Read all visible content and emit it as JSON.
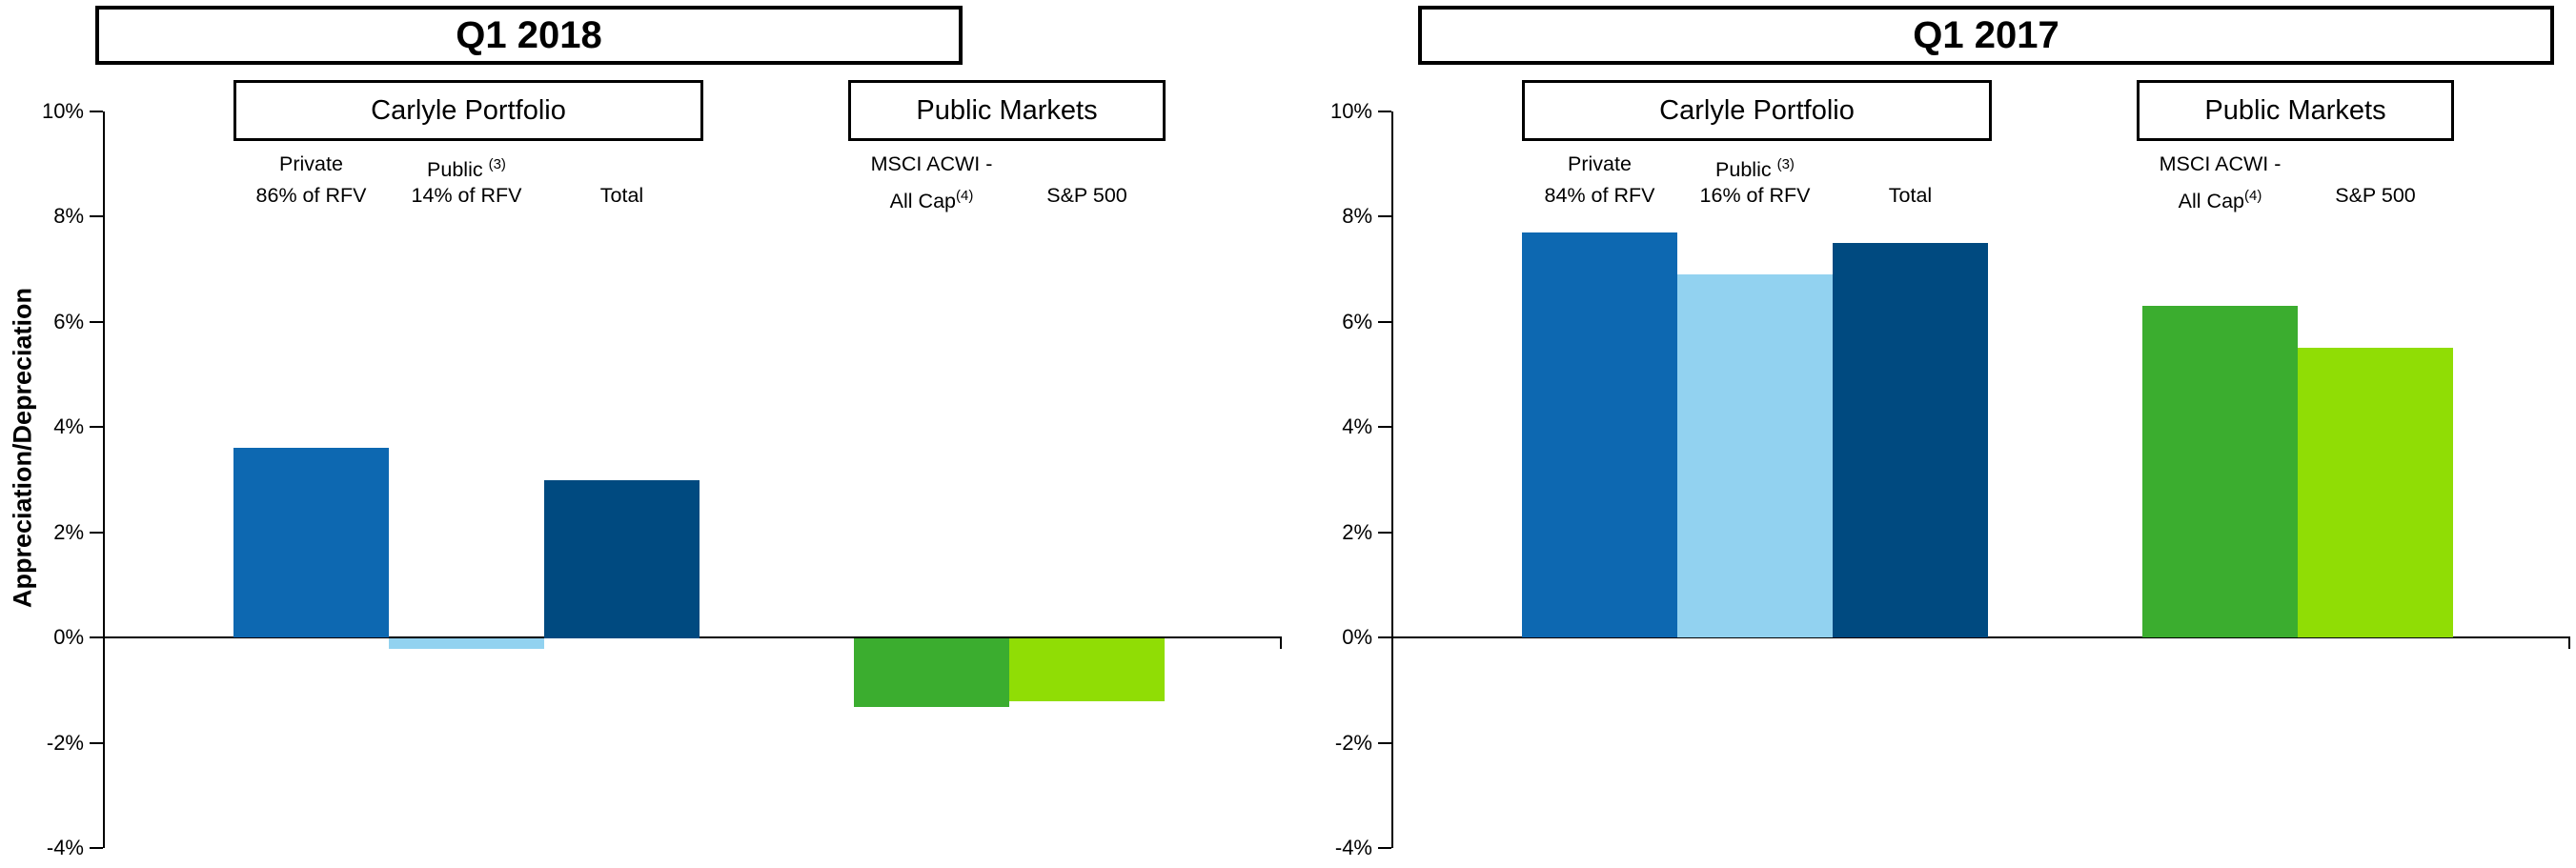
{
  "y_axis_title": "Appreciation/Depreciation",
  "chart_data": [
    {
      "type": "bar",
      "title": "Q1 2018",
      "ylabel": "Appreciation/Depreciation",
      "ylim": [
        -4,
        10
      ],
      "ytick_step": 2,
      "yticks": [
        10,
        8,
        6,
        4,
        2,
        0,
        -2,
        -4
      ],
      "ytick_labels": [
        "10%",
        "8%",
        "6%",
        "4%",
        "2%",
        "0%",
        "-2%",
        "-4%"
      ],
      "grid": false,
      "legend": "none",
      "groups": [
        {
          "header": "Carlyle Portfolio",
          "bars": [
            {
              "series": "Private",
              "label_top": "Private",
              "label_top_sup": "",
              "label_bottom": "86% of RFV",
              "label_bottom_sup": "",
              "value": 3.6,
              "color": "#0D68B1"
            },
            {
              "series": "Public",
              "label_top": "Public ",
              "label_top_sup": "(3)",
              "label_bottom": "14% of RFV",
              "label_bottom_sup": "",
              "value": -0.2,
              "color": "#92D2F0"
            },
            {
              "series": "Total",
              "label_top": "",
              "label_top_sup": "",
              "label_bottom": "Total",
              "label_bottom_sup": "",
              "value": 3.0,
              "color": "#004A80"
            }
          ]
        },
        {
          "header": "Public Markets",
          "bars": [
            {
              "series": "MSCI ACWI - All Cap",
              "label_top": "MSCI ACWI -",
              "label_top_sup": "",
              "label_bottom": "All Cap",
              "label_bottom_sup": "(4)",
              "value": -1.3,
              "color": "#3BAD2F"
            },
            {
              "series": "S&P 500",
              "label_top": "",
              "label_top_sup": "",
              "label_bottom": "S&P 500",
              "label_bottom_sup": "",
              "value": -1.2,
              "color": "#90DD05"
            }
          ]
        }
      ]
    },
    {
      "type": "bar",
      "title": "Q1 2017",
      "ylabel": "",
      "ylim": [
        -4,
        10
      ],
      "ytick_step": 2,
      "yticks": [
        10,
        8,
        6,
        4,
        2,
        0,
        -2,
        -4
      ],
      "ytick_labels": [
        "10%",
        "8%",
        "6%",
        "4%",
        "2%",
        "0%",
        "-2%",
        "-4%"
      ],
      "grid": false,
      "legend": "none",
      "groups": [
        {
          "header": "Carlyle Portfolio",
          "bars": [
            {
              "series": "Private",
              "label_top": "Private",
              "label_top_sup": "",
              "label_bottom": "84% of RFV",
              "label_bottom_sup": "",
              "value": 7.7,
              "color": "#0D68B1"
            },
            {
              "series": "Public",
              "label_top": "Public ",
              "label_top_sup": "(3)",
              "label_bottom": "16% of RFV",
              "label_bottom_sup": "",
              "value": 6.9,
              "color": "#92D2F0"
            },
            {
              "series": "Total",
              "label_top": "",
              "label_top_sup": "",
              "label_bottom": "Total",
              "label_bottom_sup": "",
              "value": 7.5,
              "color": "#004A80"
            }
          ]
        },
        {
          "header": "Public Markets",
          "bars": [
            {
              "series": "MSCI ACWI - All Cap",
              "label_top": "MSCI ACWI -",
              "label_top_sup": "",
              "label_bottom": "All Cap",
              "label_bottom_sup": "(4)",
              "value": 6.3,
              "color": "#3BAD2F"
            },
            {
              "series": "S&P 500",
              "label_top": "",
              "label_top_sup": "",
              "label_bottom": "S&P 500",
              "label_bottom_sup": "",
              "value": 5.5,
              "color": "#90DD05"
            }
          ]
        }
      ]
    }
  ]
}
